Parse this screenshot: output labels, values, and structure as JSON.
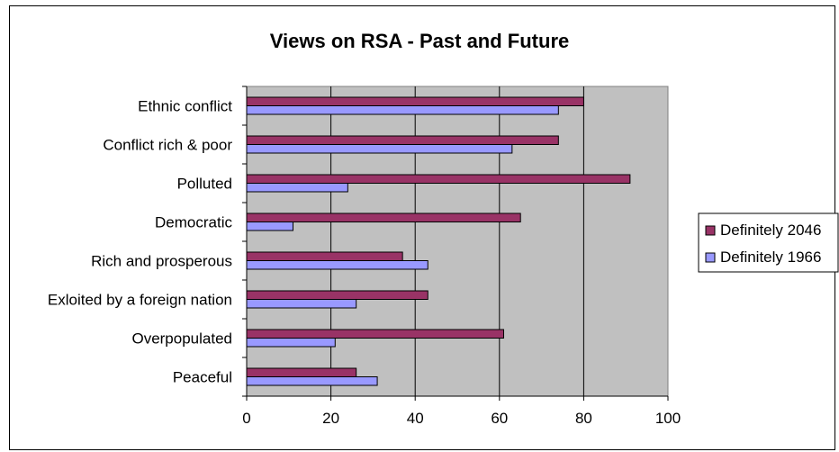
{
  "chart_data": {
    "type": "bar",
    "orientation": "horizontal",
    "title": "Views on RSA - Past and Future",
    "xlabel": "",
    "ylabel": "",
    "xlim": [
      0,
      100
    ],
    "x_ticks": [
      "0",
      "20",
      "40",
      "60",
      "80",
      "100"
    ],
    "grid": true,
    "legend_position": "right",
    "categories": [
      "Ethnic conflict",
      "Conflict rich & poor",
      "Polluted",
      "Democratic",
      "Rich and prosperous",
      "Exloited by a foreign nation",
      "Overpopulated",
      "Peaceful"
    ],
    "series": [
      {
        "name": "Definitely 2046",
        "color": "#993366",
        "values": [
          80,
          74,
          91,
          65,
          37,
          43,
          61,
          26
        ]
      },
      {
        "name": "Definitely 1966",
        "color": "#9999FF",
        "values": [
          74,
          63,
          24,
          11,
          43,
          26,
          21,
          31
        ]
      }
    ],
    "plot_background": "#C0C0C0"
  }
}
